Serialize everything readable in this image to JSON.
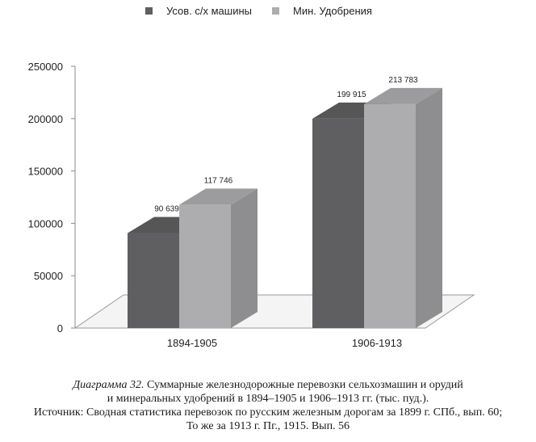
{
  "chart_data": {
    "type": "bar",
    "style": "3d",
    "categories": [
      "1894-1905",
      "1906-1913"
    ],
    "series": [
      {
        "name": "Усов. с/х машины",
        "values": [
          90639,
          199915
        ],
        "value_labels": [
          "90 639",
          "199 915"
        ],
        "color": "#5f5f61"
      },
      {
        "name": "Мин. Удобрения",
        "values": [
          117746,
          213783
        ],
        "value_labels": [
          "117 746",
          "213 783"
        ],
        "color": "#adadaf"
      }
    ],
    "ylim": [
      0,
      250000
    ],
    "yticks": [
      0,
      50000,
      100000,
      150000,
      200000,
      250000
    ],
    "ytick_labels": [
      "0",
      "50000",
      "100000",
      "150000",
      "200000",
      "250000"
    ],
    "legend_position": "top-center",
    "title": "",
    "xlabel": "",
    "ylabel": ""
  },
  "caption": {
    "number": "Диаграмма 32.",
    "line1_text": " Суммарные железнодорожные перевозки сельхозмашин и орудий",
    "line2": "и минеральных удобрений в 1894–1905 и 1906–1913 гг. (тыс. пуд.).",
    "line3": "Источник: Сводная статистика перевозок по русским железным дорогам за 1899 г. СПб., вып. 60;",
    "line4": "То же за 1913 г. Пг., 1915. Вып. 56"
  }
}
